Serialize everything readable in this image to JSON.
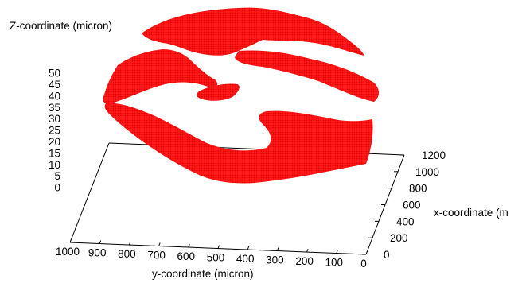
{
  "chart_data": {
    "type": "scatter",
    "subtype": "3d-surface-points",
    "title": "",
    "zlabel": "Z-coordinate (micron)",
    "ylabel": "y-coordinate (micron)",
    "xlabel": "x-coordinate (m",
    "zlim": [
      0,
      50
    ],
    "ylim": [
      1000,
      0
    ],
    "xlim": [
      0,
      1200
    ],
    "z_ticks": [
      "50",
      "45",
      "40",
      "35",
      "30",
      "25",
      "20",
      "15",
      "10",
      "5",
      "0"
    ],
    "y_ticks": [
      "1000",
      "900",
      "800",
      "700",
      "600",
      "500",
      "400",
      "300",
      "200",
      "100",
      "0"
    ],
    "x_ticks": [
      "0",
      "200",
      "400",
      "600",
      "800",
      "1000",
      "1200"
    ],
    "point_color": "#ff0000",
    "grid": false,
    "legend": "none"
  }
}
